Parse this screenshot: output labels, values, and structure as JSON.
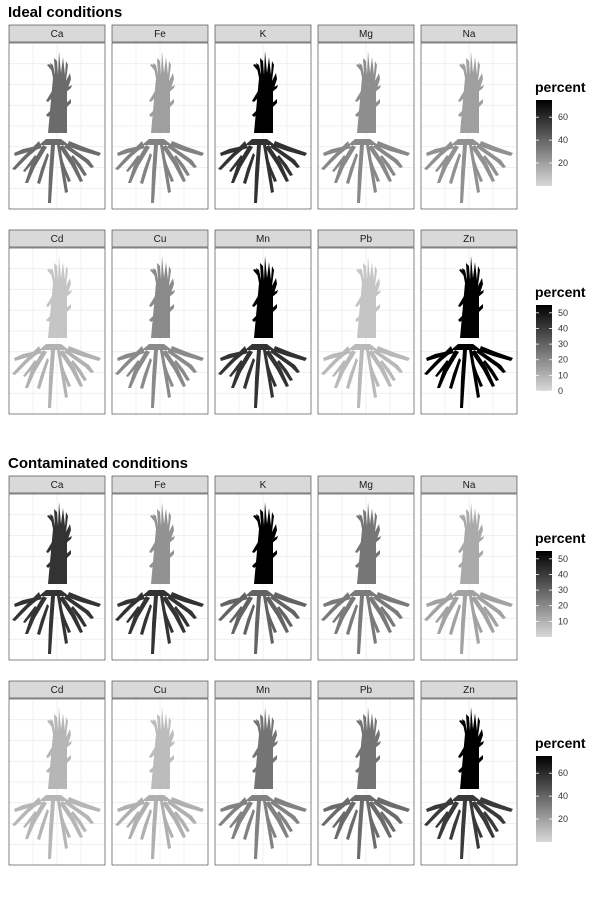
{
  "chart_data": {
    "type": "heatmap",
    "sections": [
      {
        "title": "Ideal conditions",
        "rows": [
          {
            "panels": [
              {
                "element": "Ca",
                "shoot": 38,
                "root": 38
              },
              {
                "element": "Fe",
                "shoot": 20,
                "root": 30
              },
              {
                "element": "K",
                "shoot": 75,
                "root": 58
              },
              {
                "element": "Mg",
                "shoot": 26,
                "root": 28
              },
              {
                "element": "Na",
                "shoot": 20,
                "root": 25
              }
            ],
            "legend": {
              "title": "percent",
              "min": 0,
              "max": 75,
              "ticks": [
                20,
                40,
                60
              ]
            }
          },
          {
            "panels": [
              {
                "element": "Cd",
                "shoot": 5,
                "root": 10
              },
              {
                "element": "Cu",
                "shoot": 20,
                "root": 20
              },
              {
                "element": "Mn",
                "shoot": 55,
                "root": 42
              },
              {
                "element": "Pb",
                "shoot": 5,
                "root": 8
              },
              {
                "element": "Zn",
                "shoot": 55,
                "root": 55
              }
            ],
            "legend": {
              "title": "percent",
              "min": 0,
              "max": 55,
              "ticks": [
                0,
                10,
                20,
                30,
                40,
                50
              ]
            }
          }
        ]
      },
      {
        "title": "Contaminated conditions",
        "rows": [
          {
            "panels": [
              {
                "element": "Ca",
                "shoot": 42,
                "root": 42
              },
              {
                "element": "Fe",
                "shoot": 18,
                "root": 42
              },
              {
                "element": "K",
                "shoot": 55,
                "root": 30
              },
              {
                "element": "Mg",
                "shoot": 25,
                "root": 24
              },
              {
                "element": "Na",
                "shoot": 12,
                "root": 14
              }
            ],
            "legend": {
              "title": "percent",
              "min": 0,
              "max": 55,
              "ticks": [
                10,
                20,
                30,
                40,
                50
              ]
            }
          },
          {
            "panels": [
              {
                "element": "Cd",
                "shoot": 12,
                "root": 12
              },
              {
                "element": "Cu",
                "shoot": 10,
                "root": 14
              },
              {
                "element": "Mn",
                "shoot": 35,
                "root": 30
              },
              {
                "element": "Pb",
                "shoot": 35,
                "root": 38
              },
              {
                "element": "Zn",
                "shoot": 75,
                "root": 55
              }
            ],
            "legend": {
              "title": "percent",
              "min": 0,
              "max": 75,
              "ticks": [
                20,
                40,
                60
              ]
            }
          }
        ]
      }
    ]
  }
}
